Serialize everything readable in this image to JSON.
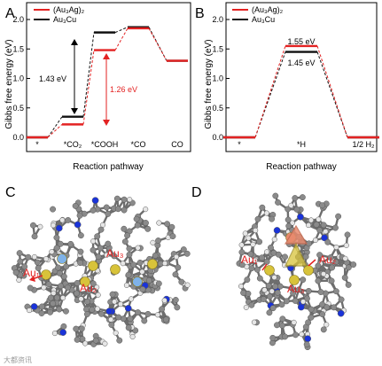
{
  "chart_data": [
    {
      "panel_label": "A",
      "type": "line",
      "xlabel": "Reaction pathway",
      "ylabel": "Gibbs free energy (eV)",
      "ylim": [
        0,
        2.0
      ],
      "yticks": [
        "0.0",
        "0.5",
        "1.0",
        "1.5",
        "2.0"
      ],
      "categories": [
        "*",
        "*CO₂",
        "*COOH",
        "*CO",
        "CO"
      ],
      "legend": [
        "(Au₃Ag)₂",
        "Au₃Cu"
      ],
      "series": [
        {
          "name": "(Au₃Ag)₂",
          "color": "#e32222",
          "values": [
            0.0,
            0.22,
            1.48,
            1.85,
            1.3
          ]
        },
        {
          "name": "Au₃Cu",
          "color": "#111111",
          "values": [
            0.0,
            0.35,
            1.78,
            1.87,
            1.3
          ]
        }
      ],
      "annotations": [
        {
          "text": "1.43 eV",
          "color": "#000000"
        },
        {
          "text": "1.26 eV",
          "color": "#e32222"
        }
      ]
    },
    {
      "panel_label": "B",
      "type": "line",
      "xlabel": "Reaction pathway",
      "ylabel": "Gibbs free energy (eV)",
      "ylim": [
        0,
        2.0
      ],
      "yticks": [
        "0.0",
        "0.5",
        "1.0",
        "1.5",
        "2.0"
      ],
      "categories": [
        "*",
        "*H",
        "1/2 H₂"
      ],
      "legend": [
        "(Au₃Ag)₂",
        "Au₃Cu"
      ],
      "series": [
        {
          "name": "(Au₃Ag)₂",
          "color": "#e32222",
          "values": [
            0.0,
            1.55,
            0.0
          ]
        },
        {
          "name": "Au₃Cu",
          "color": "#111111",
          "values": [
            0.0,
            1.45,
            0.0
          ]
        }
      ],
      "annotations": [
        {
          "text": "1.55 eV",
          "color": "#000000"
        },
        {
          "text": "1.45 eV",
          "color": "#000000"
        }
      ]
    }
  ],
  "structures": {
    "C": {
      "panel_label": "C",
      "labels": [
        "Au₁",
        "Au₃",
        "Au₂"
      ]
    },
    "D": {
      "panel_label": "D",
      "labels": [
        "Au₁",
        "Au₂",
        "Au₃"
      ]
    },
    "watermark": "大都资讯"
  },
  "colors": {
    "au": "#d8c33a",
    "ag": "#7fb2e8",
    "cu": "#e88a6e",
    "n": "#1a33d9",
    "c": "#8a8a8a",
    "h": "#e6e6e6",
    "red": "#e32222"
  }
}
